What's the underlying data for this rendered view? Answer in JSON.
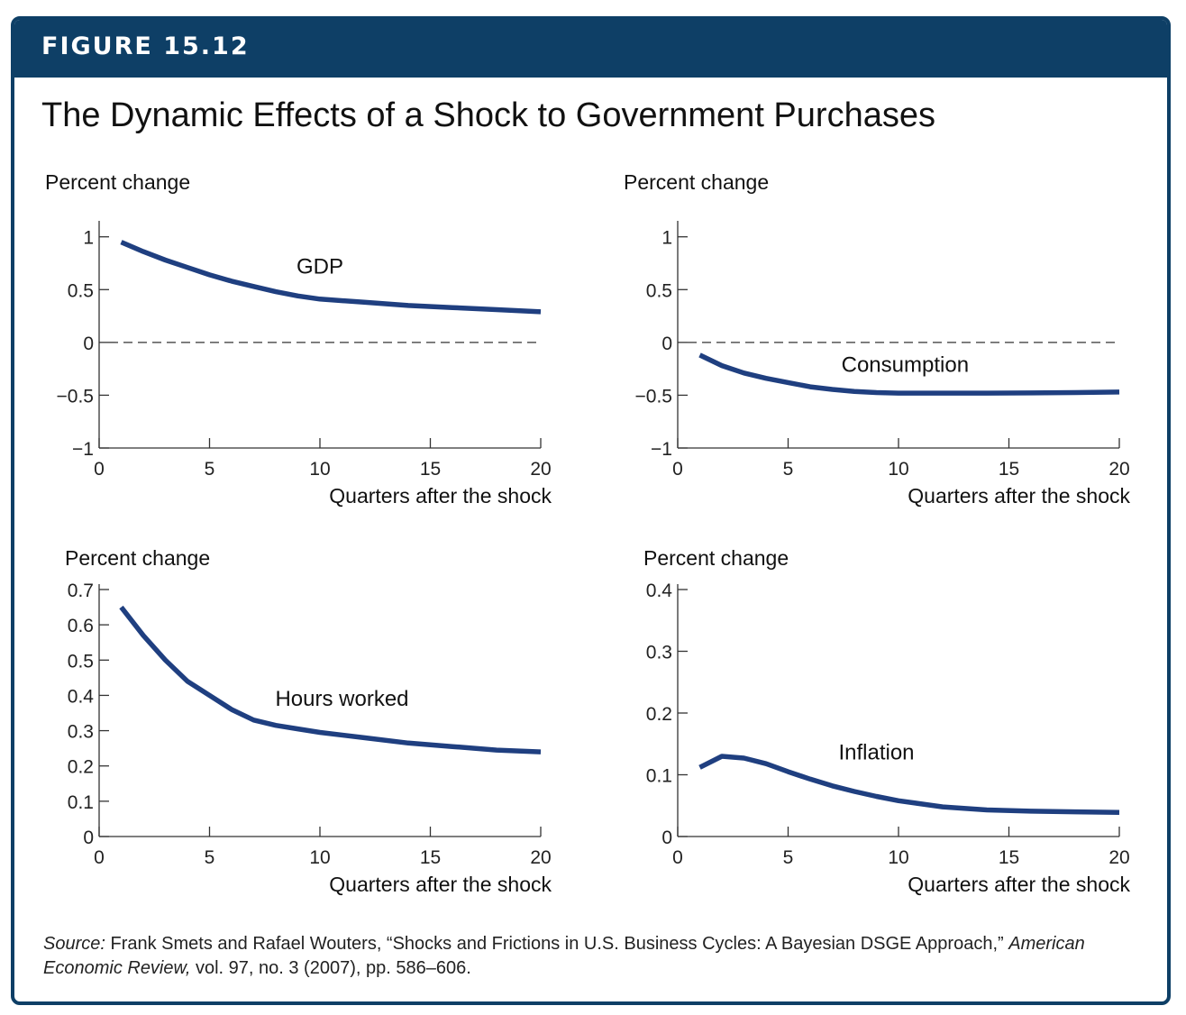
{
  "figure": {
    "label": "FIGURE 15.12",
    "title": "The Dynamic Effects of a Shock to Government Purchases",
    "banner_color": "#0e3f66",
    "line_color": "#1f3f80"
  },
  "source": {
    "prefix": "Source:",
    "authors": "Frank Smets and Rafael Wouters, “Shocks and Frictions in U.S. Business Cycles: A Bayesian DSGE Approach,”",
    "journal": "American Economic Review,",
    "details": "vol. 97, no. 3 (2007), pp. 586–606."
  },
  "chart_data": [
    {
      "type": "line",
      "ylabel": "Percent change",
      "xlabel": "Quarters after the shock",
      "series_label": "GDP",
      "xlim": [
        0,
        20
      ],
      "ylim": [
        -1,
        1.1
      ],
      "xticks": [
        0,
        5,
        10,
        15,
        20
      ],
      "xtick_labels": [
        "0",
        "5",
        "10",
        "15",
        "20"
      ],
      "yticks": [
        1,
        0.5,
        0,
        -0.5,
        -1
      ],
      "ytick_labels": [
        "1",
        "0.5",
        "0",
        "−0.5",
        "−1"
      ],
      "zero_line": true,
      "series": [
        {
          "x": [
            1,
            2,
            3,
            4,
            5,
            6,
            7,
            8,
            9,
            10,
            12,
            14,
            16,
            18,
            20
          ],
          "y": [
            0.95,
            0.86,
            0.78,
            0.71,
            0.64,
            0.58,
            0.53,
            0.48,
            0.44,
            0.41,
            0.38,
            0.35,
            0.33,
            0.31,
            0.29
          ]
        }
      ]
    },
    {
      "type": "line",
      "ylabel": "Percent change",
      "xlabel": "Quarters after the shock",
      "series_label": "Consumption",
      "xlim": [
        0,
        20
      ],
      "ylim": [
        -1,
        1.1
      ],
      "xticks": [
        0,
        5,
        10,
        15,
        20
      ],
      "xtick_labels": [
        "0",
        "5",
        "10",
        "15",
        "20"
      ],
      "yticks": [
        1,
        0.5,
        0,
        -0.5,
        -1
      ],
      "ytick_labels": [
        "1",
        "0.5",
        "0",
        "−0.5",
        "−1"
      ],
      "zero_line": true,
      "series": [
        {
          "x": [
            1,
            2,
            3,
            4,
            5,
            6,
            7,
            8,
            9,
            10,
            12,
            14,
            16,
            18,
            20
          ],
          "y": [
            -0.12,
            -0.22,
            -0.29,
            -0.34,
            -0.38,
            -0.42,
            -0.445,
            -0.465,
            -0.475,
            -0.48,
            -0.48,
            -0.48,
            -0.478,
            -0.475,
            -0.47
          ]
        }
      ]
    },
    {
      "type": "line",
      "ylabel": "Percent change",
      "xlabel": "Quarters after the shock",
      "series_label": "Hours worked",
      "xlim": [
        0,
        20
      ],
      "ylim": [
        0,
        0.7
      ],
      "xticks": [
        0,
        5,
        10,
        15,
        20
      ],
      "xtick_labels": [
        "0",
        "5",
        "10",
        "15",
        "20"
      ],
      "yticks": [
        0.7,
        0.6,
        0.5,
        0.4,
        0.3,
        0.2,
        0.1,
        0
      ],
      "ytick_labels": [
        "0.7",
        "0.6",
        "0.5",
        "0.4",
        "0.3",
        "0.2",
        "0.1",
        "0"
      ],
      "zero_line": false,
      "series": [
        {
          "x": [
            1,
            2,
            3,
            4,
            5,
            6,
            7,
            8,
            9,
            10,
            12,
            14,
            16,
            18,
            20
          ],
          "y": [
            0.65,
            0.57,
            0.5,
            0.44,
            0.4,
            0.36,
            0.33,
            0.315,
            0.305,
            0.295,
            0.28,
            0.265,
            0.255,
            0.245,
            0.24
          ]
        }
      ]
    },
    {
      "type": "line",
      "ylabel": "Percent change",
      "xlabel": "Quarters after the shock",
      "series_label": "Inflation",
      "xlim": [
        0,
        20
      ],
      "ylim": [
        0,
        0.4
      ],
      "xticks": [
        0,
        5,
        10,
        15,
        20
      ],
      "xtick_labels": [
        "0",
        "5",
        "10",
        "15",
        "20"
      ],
      "yticks": [
        0.4,
        0.3,
        0.2,
        0.1,
        0
      ],
      "ytick_labels": [
        "0.4",
        "0.3",
        "0.2",
        "0.1",
        "0"
      ],
      "zero_line": false,
      "series": [
        {
          "x": [
            1,
            2,
            3,
            4,
            5,
            6,
            7,
            8,
            9,
            10,
            12,
            14,
            16,
            18,
            20
          ],
          "y": [
            0.112,
            0.13,
            0.127,
            0.118,
            0.105,
            0.093,
            0.082,
            0.073,
            0.065,
            0.058,
            0.048,
            0.043,
            0.041,
            0.04,
            0.039
          ]
        }
      ]
    }
  ]
}
